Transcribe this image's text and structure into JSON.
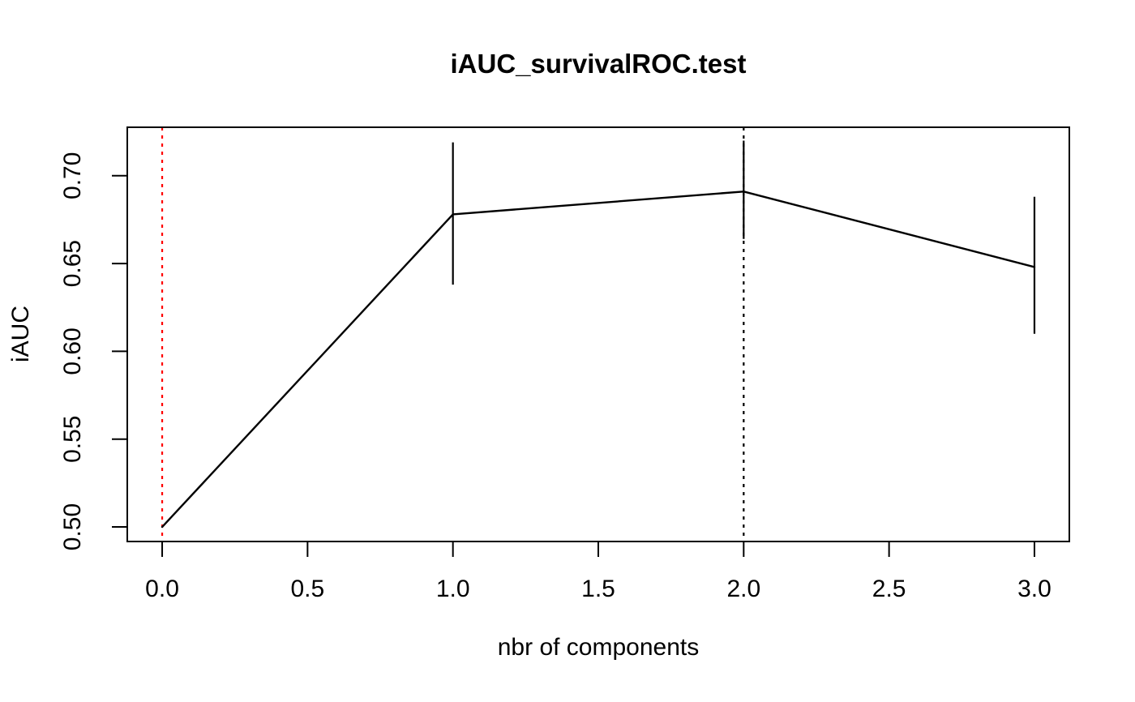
{
  "window_title": "iAUC_survivalROC.test",
  "chart_data": {
    "type": "line",
    "title": "iAUC_survivalROC.test",
    "xlabel": "nbr of components",
    "ylabel": "iAUC",
    "x": [
      0,
      1,
      2,
      3
    ],
    "series": [
      {
        "name": "iAUC_survivalROC.test",
        "values": [
          0.5,
          0.678,
          0.691,
          0.648
        ],
        "ci_lower": [
          null,
          0.638,
          0.664,
          0.61
        ],
        "ci_upper": [
          null,
          0.719,
          0.72,
          0.688
        ],
        "color": "#000000"
      }
    ],
    "x_ticks": {
      "values": [
        0,
        0.5,
        1,
        1.5,
        2,
        2.5,
        3
      ],
      "labels": [
        "0.0",
        "0.5",
        "1.0",
        "1.5",
        "2.0",
        "2.5",
        "3.0"
      ]
    },
    "y_ticks": {
      "values": [
        0.5,
        0.55,
        0.6,
        0.65,
        0.7
      ],
      "labels": [
        "0.50",
        "0.55",
        "0.60",
        "0.65",
        "0.70"
      ]
    },
    "xlim": [
      -0.12,
      3.12
    ],
    "ylim": [
      0.4917,
      0.7276
    ],
    "grid": false,
    "legend": null,
    "reference_lines": [
      {
        "axis": "x",
        "value": 0,
        "style": "dotted",
        "color": "#FF0000",
        "name": "reference-line-x0-red"
      },
      {
        "axis": "x",
        "value": 2,
        "style": "dotted",
        "color": "#000000",
        "name": "reference-line-x2-black"
      }
    ],
    "colors": {
      "line": "#000000",
      "axis": "#000000",
      "background": "#ffffff",
      "reference_red": "#FF0000"
    }
  }
}
